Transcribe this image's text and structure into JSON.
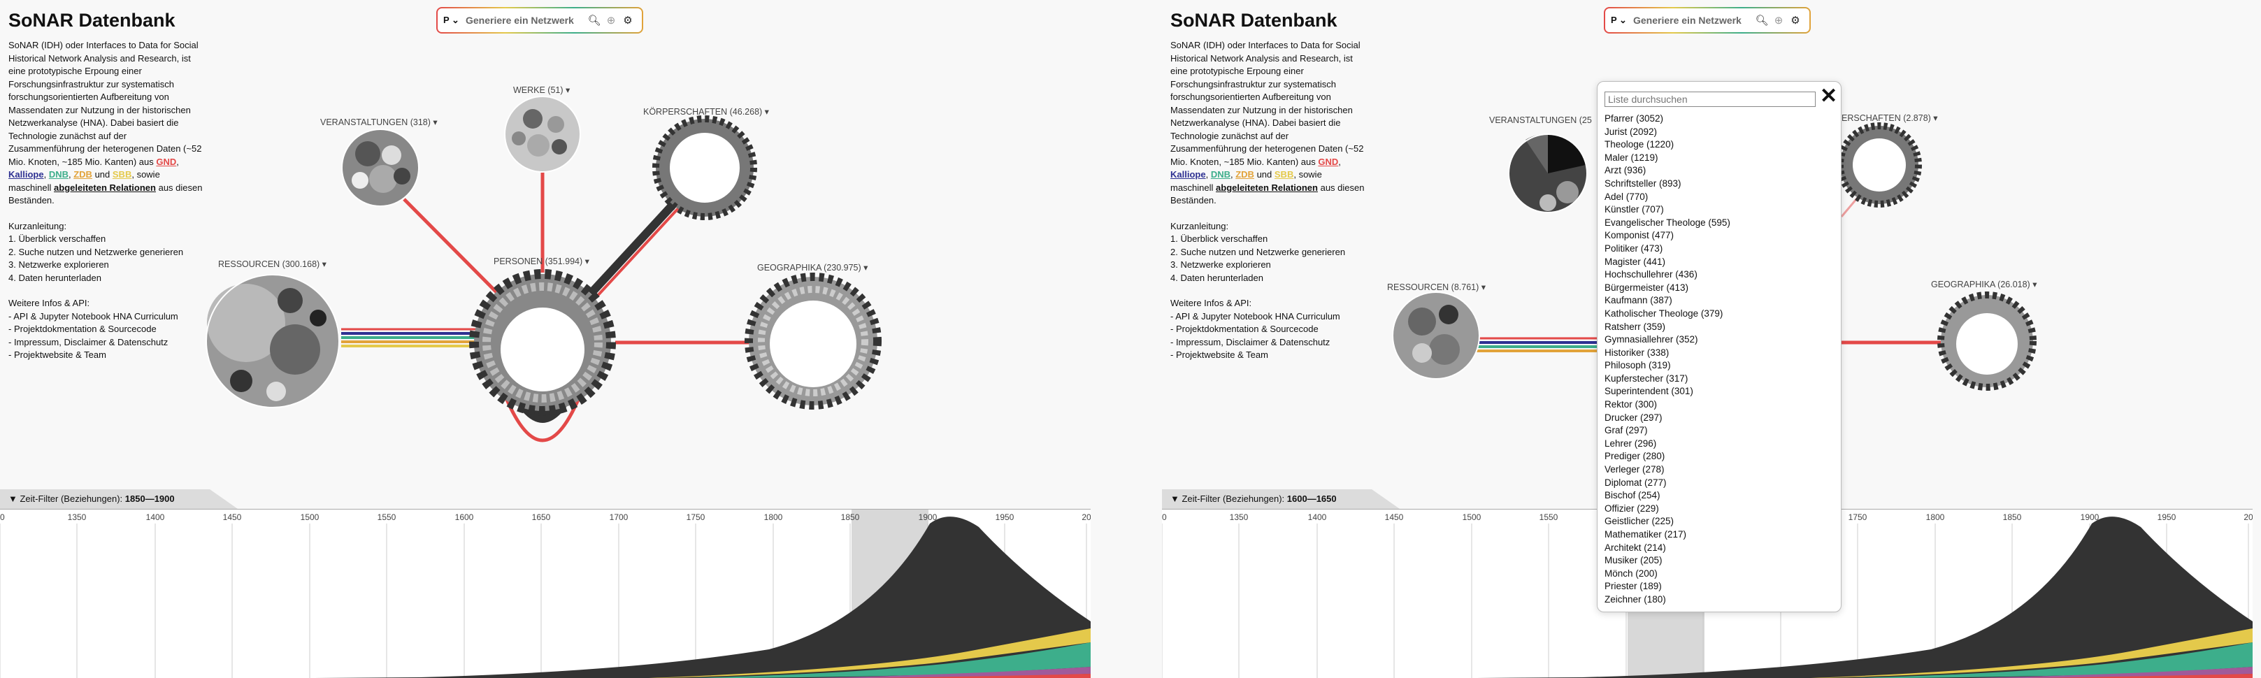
{
  "app": {
    "title": "SoNAR Datenbank",
    "description": "SoNAR (IDH) oder Interfaces to Data for Social Historical Network Analysis and Research, ist eine prototypische Erpoung einer Forschungsinfrastruktur zur systematisch forschungsorientierten Aufbereitung von Massendaten zur Nutzung in der historischen Netzwerkanalyse (HNA). Dabei basiert die Technologie zunächst auf der Zusammenführung der heterogenen Daten (~52 Mio. Knoten, ~185 Mio. Kanten) aus",
    "sources": [
      "GND",
      "Kalliope",
      "DNB",
      "ZDB",
      "SBB"
    ],
    "desc_und": "und",
    "desc_tail": ", sowie maschinell",
    "derived_relations": "abgeleiteten Relationen",
    "desc_end": "aus diesen Beständen.",
    "guide_title": "Kurzanleitung:",
    "guide": [
      "1. Überblick verschaffen",
      "2. Suche nutzen und Netzwerke generieren",
      "3. Netzwerke explorieren",
      "4. Daten herunterladen"
    ],
    "info_title": "Weitere Infos & API:",
    "info_links": [
      "- API & Jupyter Notebook HNA Curriculum",
      "- Projektdokmentation & Sourcecode",
      "- Impressum, Disclaimer & Datenschutz",
      "- Projektwebsite & Team"
    ]
  },
  "search": {
    "type_label": "P ⌄",
    "placeholder": "Generiere ein Netzwerk",
    "search_icon": "search-icon",
    "add_icon": "add-icon",
    "settings_icon": "gear-icon"
  },
  "colors": {
    "gnd": "#e34948",
    "kalliope": "#2e3192",
    "dnb": "#3dae8b",
    "zdb": "#e2a33a",
    "sbb": "#e4c94b",
    "dark": "#333333"
  },
  "left": {
    "nodes": {
      "veranstaltungen": "VERANSTALTUNGEN (318) ▾",
      "werke": "WERKE (51) ▾",
      "koerperschaften": "KÖRPERSCHAFTEN (46.268) ▾",
      "ressourcen": "RESSOURCEN (300.168) ▾",
      "personen": "PERSONEN (351.994) ▾",
      "geographika": "GEOGRAPHIKA (230.975) ▾"
    },
    "time_filter_label": "▼ Zeit-Filter (Beziehungen):",
    "time_filter_range": "1850—1900"
  },
  "right": {
    "nodes": {
      "veranstaltungen": "VERANSTALTUNGEN (25",
      "koerperschaften": "ERSCHAFTEN (2.878) ▾",
      "ressourcen": "RESSOURCEN (8.761) ▾",
      "geographika": "GEOGRAPHIKA (26.018) ▾"
    },
    "time_filter_label": "▼ Zeit-Filter (Beziehungen):",
    "time_filter_range": "1600—1650"
  },
  "timeline": {
    "ticks": [
      "00",
      "1350",
      "1400",
      "1450",
      "1500",
      "1550",
      "1600",
      "1650",
      "1700",
      "1750",
      "1800",
      "1850",
      "1900",
      "1950",
      "20"
    ]
  },
  "popup": {
    "search_placeholder": "Liste durchsuchen",
    "close_label": "✕",
    "items": [
      "Pfarrer (3052)",
      "Jurist (2092)",
      "Theologe (1220)",
      "Maler (1219)",
      "Arzt (936)",
      "Schriftsteller (893)",
      "Adel (770)",
      "Künstler (707)",
      "Evangelischer Theologe (595)",
      "Komponist (477)",
      "Politiker (473)",
      "Magister (441)",
      "Hochschullehrer (436)",
      "Bürgermeister (413)",
      "Kaufmann (387)",
      "Katholischer Theologe (379)",
      "Ratsherr (359)",
      "Gymnasiallehrer (352)",
      "Historiker (338)",
      "Philosoph (319)",
      "Kupferstecher (317)",
      "Superintendent (301)",
      "Rektor (300)",
      "Drucker (297)",
      "Graf (297)",
      "Lehrer (296)",
      "Prediger (280)",
      "Verleger (278)",
      "Diplomat (277)",
      "Bischof (254)",
      "Offizier (229)",
      "Geistlicher (225)",
      "Mathematiker (217)",
      "Architekt (214)",
      "Musiker (205)",
      "Mönch (200)",
      "Priester (189)",
      "Zeichner (180)"
    ]
  }
}
